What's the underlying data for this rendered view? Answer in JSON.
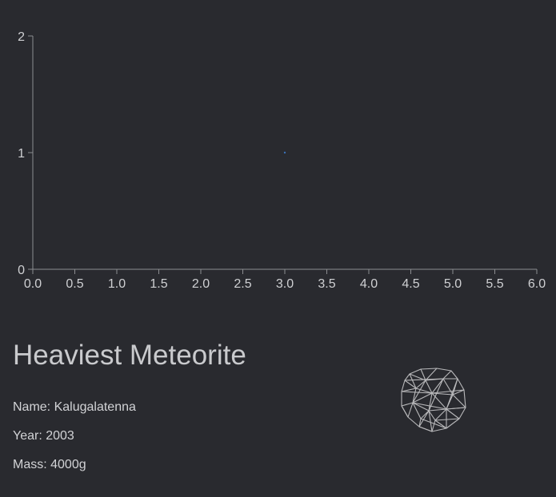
{
  "chart_data": {
    "type": "scatter",
    "x": [
      3.0
    ],
    "y": [
      1
    ],
    "xlim": [
      0,
      6
    ],
    "ylim": [
      0,
      2
    ],
    "x_ticks": [
      "0.0",
      "0.5",
      "1.0",
      "1.5",
      "2.0",
      "2.5",
      "3.0",
      "3.5",
      "4.0",
      "4.5",
      "5.0",
      "5.5",
      "6.0"
    ],
    "y_ticks": [
      "0",
      "1",
      "2"
    ],
    "point_color": "#3b6fb6",
    "axis_color": "#8c8d91",
    "grid": false
  },
  "info": {
    "title": "Heaviest Meteorite",
    "name_label": "Name: Kalugalatenna",
    "year_label": "Year: 2003",
    "mass_label": "Mass: 4000g"
  },
  "meteorite_icon": "wireframe-rock-icon",
  "colors": {
    "background": "#292a2f",
    "text": "#d4d4d6",
    "wireframe": "#b9b9bb"
  }
}
